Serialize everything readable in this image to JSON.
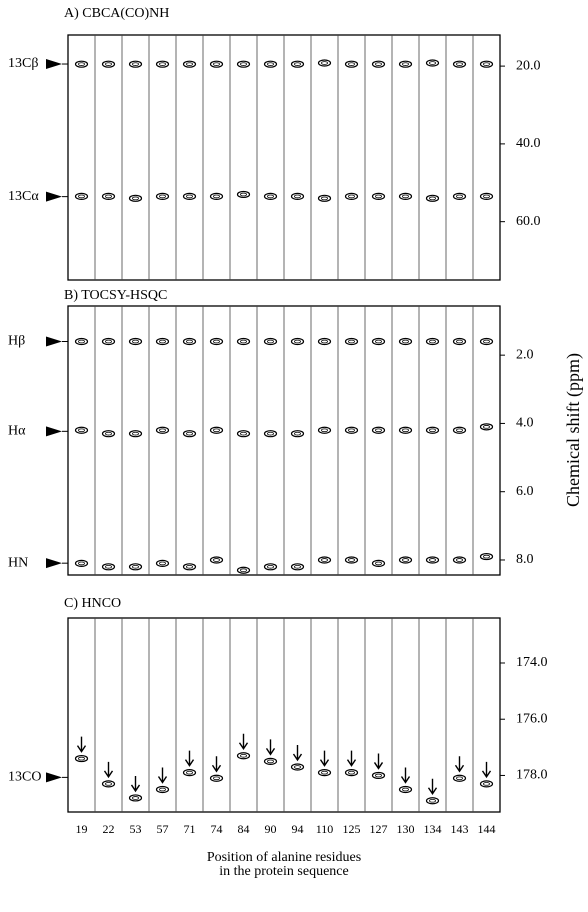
{
  "ylabel": "Chemical shift (ppm)",
  "xlabel": [
    "Position of alanine residues",
    "in the protein sequence"
  ],
  "chart_data": [
    {
      "type": "strip",
      "title": "A) CBCA(CO)NH",
      "ylim": [
        12,
        75
      ],
      "y_inverted": true,
      "yticks": [
        {
          "value": 20,
          "label": "20.0"
        },
        {
          "value": 40,
          "label": "40.0"
        },
        {
          "value": 60,
          "label": "60.0"
        }
      ],
      "series": [
        {
          "name": "13Cβ",
          "color": "#000000",
          "values": [
            19.5,
            19.5,
            19.5,
            19.5,
            19.5,
            19.5,
            19.5,
            19.5,
            19.5,
            19.2,
            19.5,
            19.5,
            19.5,
            19.2,
            19.5,
            19.5
          ]
        },
        {
          "name": "13Cα",
          "color": "#000000",
          "values": [
            53.5,
            53.5,
            54,
            53.5,
            53.5,
            53.5,
            53,
            53.5,
            53.5,
            54,
            53.5,
            53.5,
            53.5,
            54,
            53.5,
            53.5
          ]
        }
      ]
    },
    {
      "type": "strip",
      "title": "B) TOCSY-HSQC",
      "ylim": [
        0.56,
        8.44
      ],
      "y_inverted": true,
      "yticks": [
        {
          "value": 2,
          "label": "2.0"
        },
        {
          "value": 4,
          "label": "4.0"
        },
        {
          "value": 6,
          "label": "6.0"
        },
        {
          "value": 8,
          "label": "8.0"
        }
      ],
      "series": [
        {
          "name": "Hβ",
          "color": "#000000",
          "values": [
            1.6,
            1.6,
            1.6,
            1.6,
            1.6,
            1.6,
            1.6,
            1.6,
            1.6,
            1.6,
            1.6,
            1.6,
            1.6,
            1.6,
            1.6,
            1.6
          ]
        },
        {
          "name": "Hα",
          "color": "#000000",
          "values": [
            4.2,
            4.3,
            4.3,
            4.2,
            4.3,
            4.2,
            4.3,
            4.3,
            4.3,
            4.2,
            4.2,
            4.2,
            4.2,
            4.2,
            4.2,
            4.1
          ]
        },
        {
          "name": "HN",
          "color": "#000000",
          "values": [
            8.1,
            8.2,
            8.2,
            8.1,
            8.2,
            8.0,
            8.3,
            8.2,
            8.2,
            8.0,
            8.0,
            8.1,
            8.0,
            8.0,
            8.0,
            7.9
          ]
        }
      ]
    },
    {
      "type": "strip",
      "title": "C) HNCO",
      "ylim": [
        172.4,
        179.3
      ],
      "y_inverted": true,
      "yticks": [
        {
          "value": 174,
          "label": "174.0"
        },
        {
          "value": 176,
          "label": "176.0"
        },
        {
          "value": 178,
          "label": "178.0"
        }
      ],
      "categories": [
        "19",
        "22",
        "53",
        "57",
        "71",
        "74",
        "84",
        "90",
        "94",
        "110",
        "125",
        "127",
        "130",
        "134",
        "143",
        "144"
      ],
      "series": [
        {
          "name": "13CO",
          "color": "#000000",
          "values": [
            177.4,
            178.3,
            178.8,
            178.5,
            177.9,
            178.1,
            177.3,
            177.5,
            177.7,
            177.9,
            177.9,
            178.0,
            178.5,
            178.9,
            178.1,
            178.3
          ]
        }
      ]
    }
  ]
}
